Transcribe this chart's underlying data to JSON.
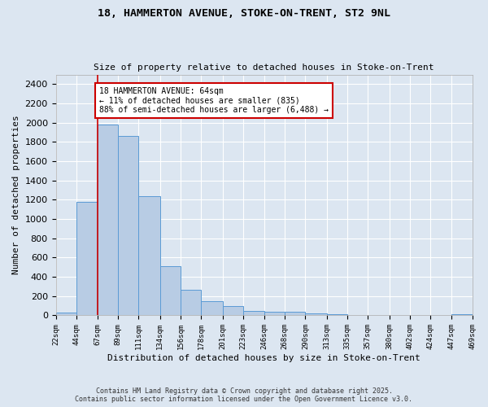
{
  "title_line1": "18, HAMMERTON AVENUE, STOKE-ON-TRENT, ST2 9NL",
  "title_line2": "Size of property relative to detached houses in Stoke-on-Trent",
  "xlabel": "Distribution of detached houses by size in Stoke-on-Trent",
  "ylabel": "Number of detached properties",
  "bar_color": "#b8cce4",
  "bar_edge_color": "#5b9bd5",
  "background_color": "#dce6f1",
  "plot_bg_color": "#dce6f1",
  "grid_color": "#ffffff",
  "bins": [
    22,
    44,
    67,
    89,
    111,
    134,
    156,
    178,
    201,
    223,
    246,
    268,
    290,
    313,
    335,
    357,
    380,
    402,
    424,
    447,
    469
  ],
  "bin_labels": [
    "22sqm",
    "44sqm",
    "67sqm",
    "89sqm",
    "111sqm",
    "134sqm",
    "156sqm",
    "178sqm",
    "201sqm",
    "223sqm",
    "246sqm",
    "268sqm",
    "290sqm",
    "313sqm",
    "335sqm",
    "357sqm",
    "380sqm",
    "402sqm",
    "424sqm",
    "447sqm",
    "469sqm"
  ],
  "values": [
    30,
    1175,
    1980,
    1860,
    1240,
    515,
    270,
    150,
    95,
    50,
    40,
    40,
    20,
    10,
    5,
    5,
    5,
    5,
    5,
    15
  ],
  "property_line_x": 67,
  "annotation_text": "18 HAMMERTON AVENUE: 64sqm\n← 11% of detached houses are smaller (835)\n88% of semi-detached houses are larger (6,488) →",
  "annotation_box_color": "#ffffff",
  "annotation_box_edge": "#cc0000",
  "red_line_color": "#cc0000",
  "ylim": [
    0,
    2500
  ],
  "yticks": [
    0,
    200,
    400,
    600,
    800,
    1000,
    1200,
    1400,
    1600,
    1800,
    2000,
    2200,
    2400
  ],
  "footer_line1": "Contains HM Land Registry data © Crown copyright and database right 2025.",
  "footer_line2": "Contains public sector information licensed under the Open Government Licence v3.0."
}
